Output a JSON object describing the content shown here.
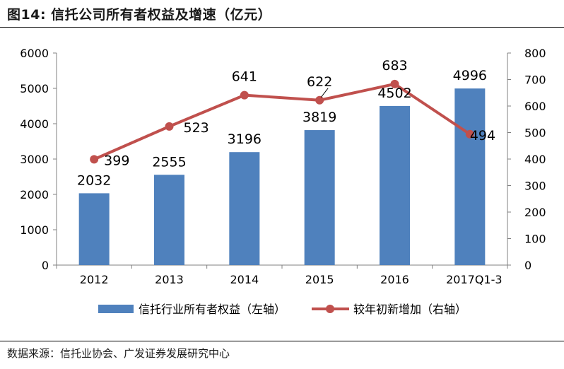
{
  "figure": {
    "title": "图14: 信托公司所有者权益及增速（亿元）",
    "source": "数据来源：信托业协会、广发证券发展研究中心"
  },
  "chart_data": {
    "type": "bar",
    "title": "信托公司所有者权益及增速（亿元）",
    "categories": [
      "2012",
      "2013",
      "2014",
      "2015",
      "2016",
      "2017Q1-3"
    ],
    "series": [
      {
        "name": "信托行业所有者权益（左轴）",
        "type": "bar",
        "axis": "left",
        "color": "#4F81BD",
        "values": [
          2032,
          2555,
          3196,
          3819,
          4502,
          4996
        ],
        "labels": [
          "2032",
          "2555",
          "3196",
          "3819",
          "4502",
          "4996"
        ]
      },
      {
        "name": "较年初新增加（右轴）",
        "type": "line",
        "axis": "right",
        "color": "#C0504D",
        "values": [
          399,
          523,
          641,
          622,
          683,
          494
        ],
        "labels": [
          "399",
          "523",
          "641",
          "622",
          "683",
          "494"
        ]
      }
    ],
    "y_left": {
      "min": 0,
      "max": 6000,
      "step": 1000,
      "ticks": [
        "0",
        "1000",
        "2000",
        "3000",
        "4000",
        "5000",
        "6000"
      ]
    },
    "y_right": {
      "min": 0,
      "max": 800,
      "step": 100,
      "ticks": [
        "0",
        "100",
        "200",
        "300",
        "400",
        "500",
        "600",
        "700",
        "800"
      ]
    },
    "legend_position": "bottom",
    "grid": false
  }
}
